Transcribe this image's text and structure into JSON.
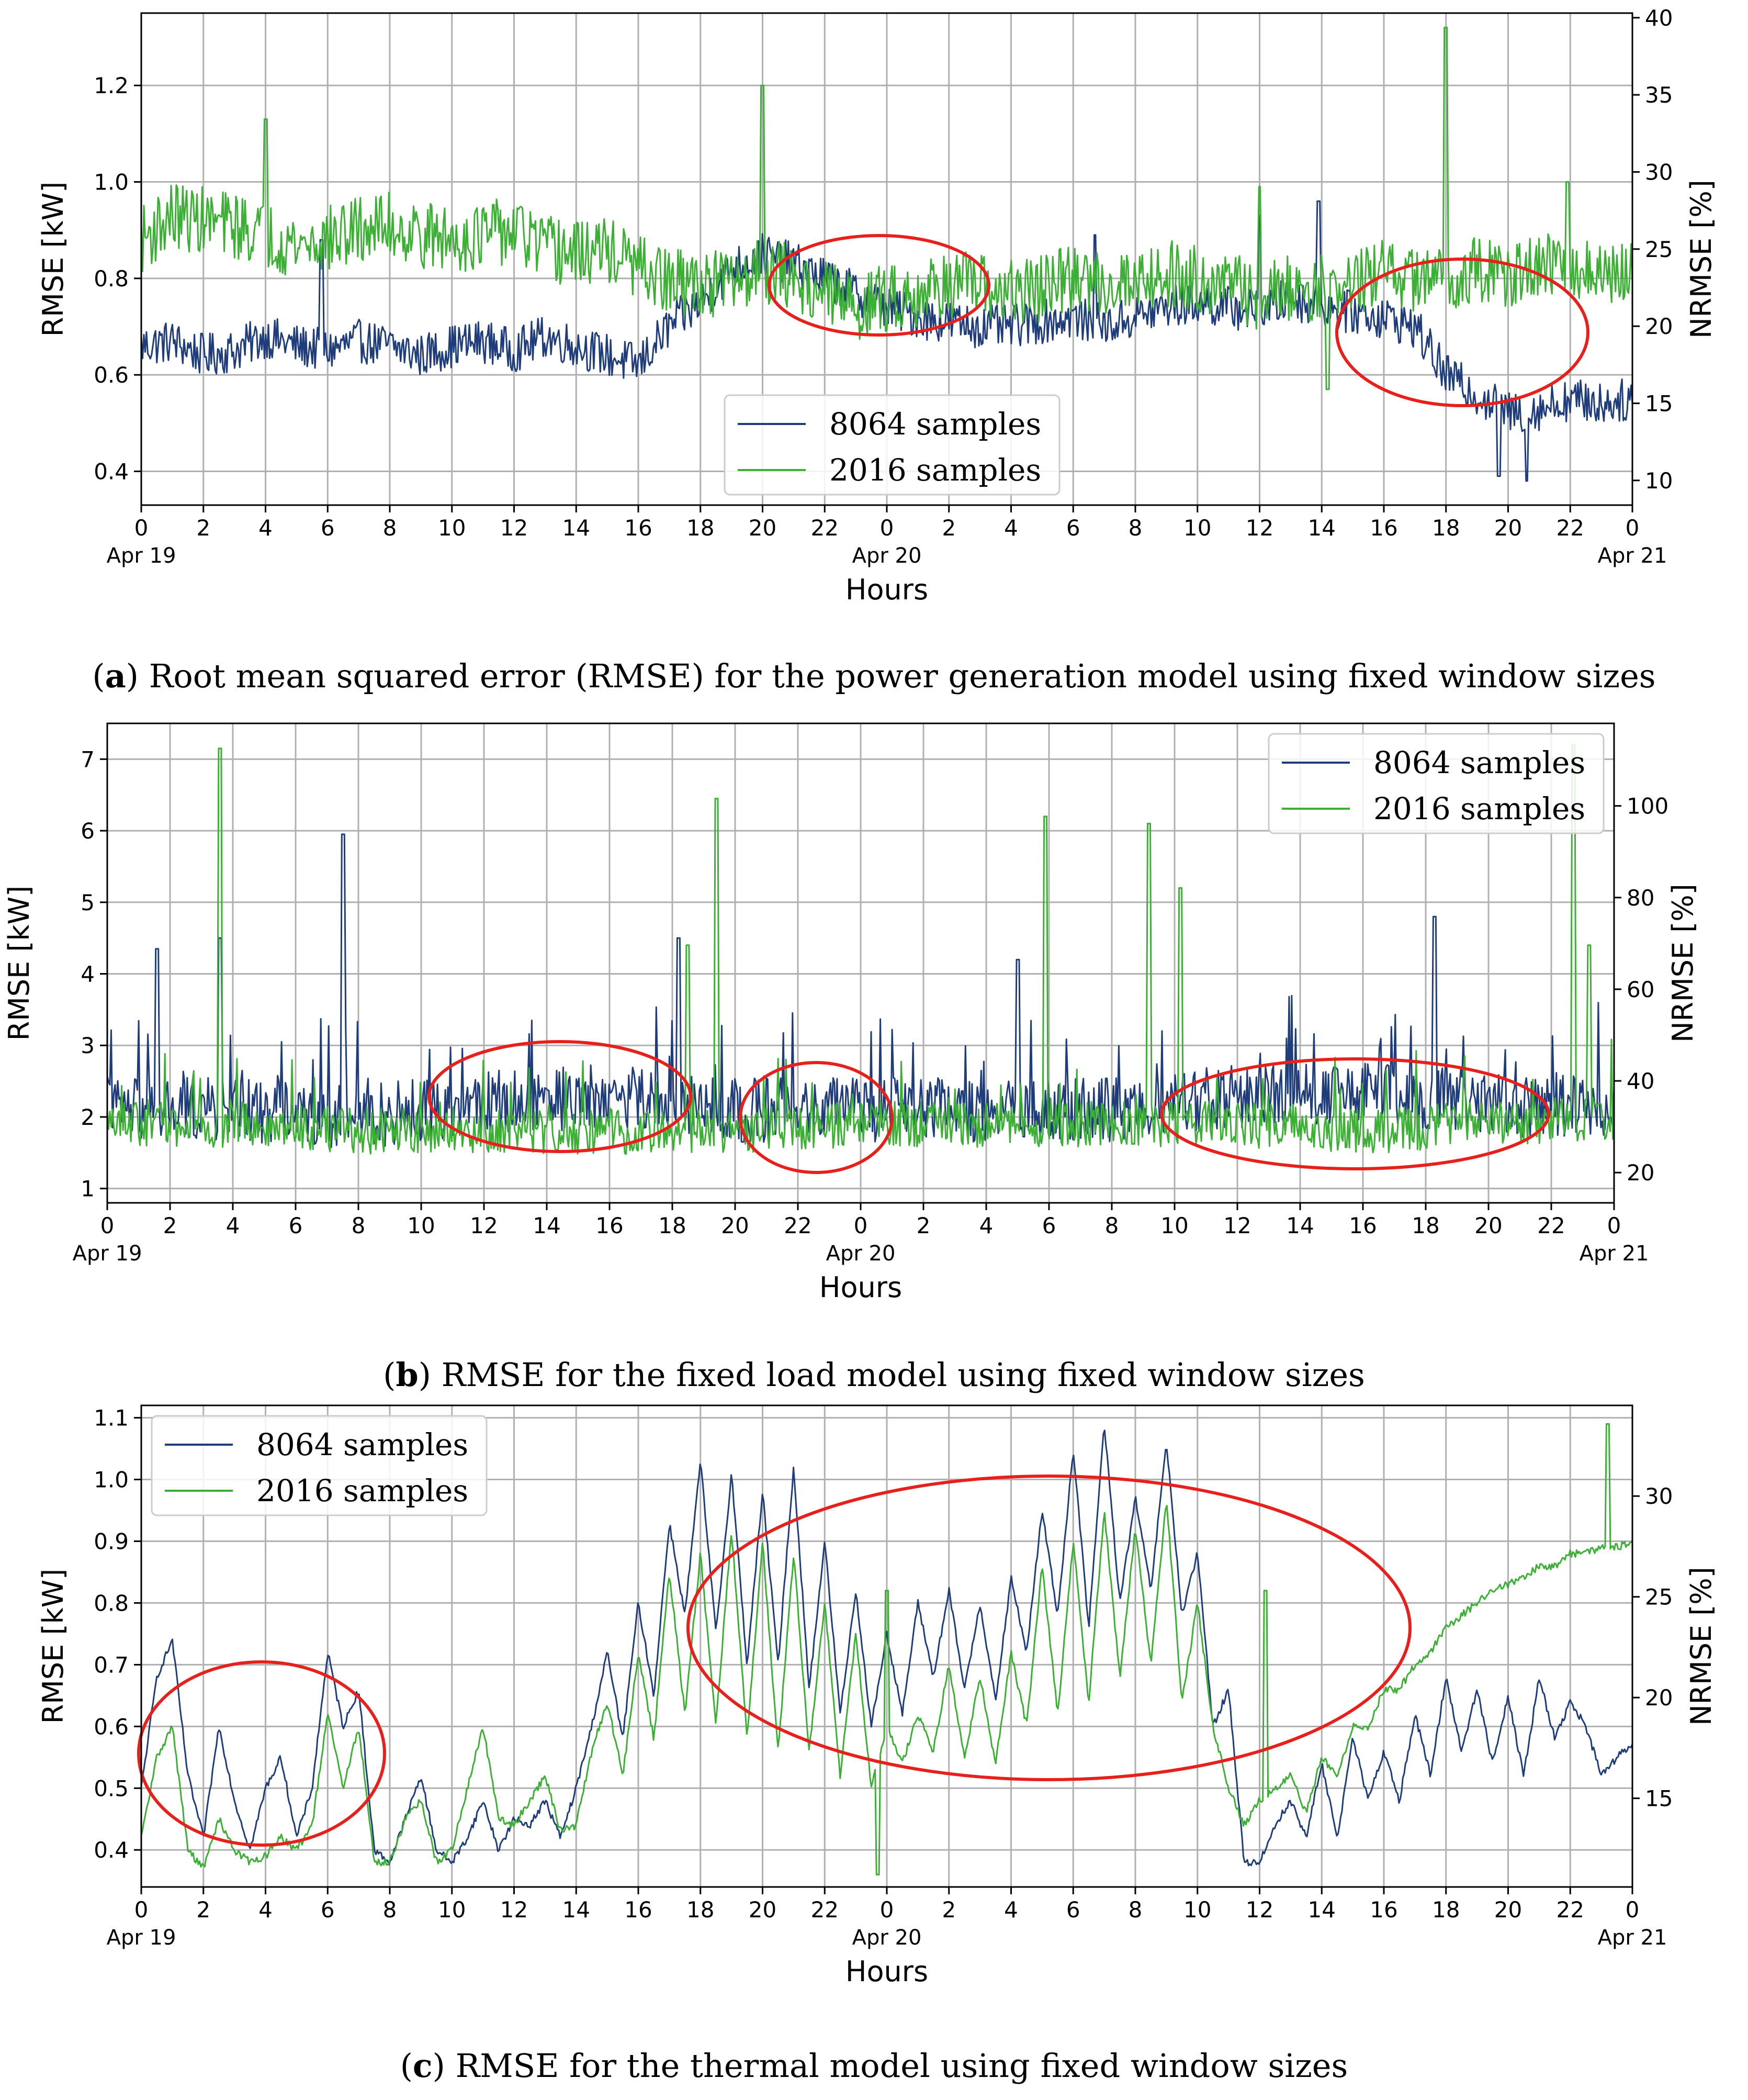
{
  "chart_data": [
    {
      "id": "a",
      "type": "line",
      "caption_letter": "a",
      "caption_text": "Root mean squared error (RMSE) for the power generation model using fixed window sizes",
      "xlabel": "Hours",
      "ylabel": "RMSE [kW]",
      "ylabel_right": "NRMSE [%]",
      "x_ticks": [
        "0",
        "2",
        "4",
        "6",
        "8",
        "10",
        "12",
        "14",
        "16",
        "18",
        "20",
        "22",
        "0",
        "2",
        "4",
        "6",
        "8",
        "10",
        "12",
        "14",
        "16",
        "18",
        "20",
        "22",
        "0"
      ],
      "date_labels": [
        {
          "index": 0,
          "label": "Apr 19"
        },
        {
          "index": 12,
          "label": "Apr 20"
        },
        {
          "index": 24,
          "label": "Apr 21"
        }
      ],
      "xlim": [
        0,
        48
      ],
      "ylim": [
        0.33,
        1.35
      ],
      "y_ticks": [
        0.4,
        0.6,
        0.8,
        1.0,
        1.2
      ],
      "y_tick_labels": [
        "0.4",
        "0.6",
        "0.8",
        "1.0",
        "1.2"
      ],
      "ylim_right": [
        8.4,
        40.3
      ],
      "y_ticks_right": [
        10,
        15,
        20,
        25,
        30,
        35,
        40
      ],
      "legend": {
        "position": "bottom-center",
        "entries": [
          "8064 samples",
          "2016 samples"
        ]
      },
      "series": [
        {
          "name": "8064 samples",
          "color": "#1f3d7a",
          "hours": [
            0,
            1,
            2,
            3,
            4,
            5,
            6,
            7,
            8,
            9,
            10,
            11,
            12,
            13,
            14,
            15,
            16,
            17,
            18,
            19,
            20,
            21,
            22,
            23,
            24,
            25,
            26,
            27,
            28,
            29,
            30,
            31,
            32,
            33,
            34,
            35,
            36,
            37,
            38,
            39,
            40,
            41,
            42,
            43,
            44,
            45,
            46,
            47,
            48
          ],
          "values": [
            0.66,
            0.67,
            0.64,
            0.65,
            0.68,
            0.66,
            0.65,
            0.67,
            0.66,
            0.64,
            0.66,
            0.67,
            0.65,
            0.68,
            0.66,
            0.64,
            0.62,
            0.7,
            0.75,
            0.82,
            0.85,
            0.83,
            0.8,
            0.77,
            0.74,
            0.72,
            0.71,
            0.7,
            0.7,
            0.71,
            0.72,
            0.7,
            0.72,
            0.74,
            0.75,
            0.74,
            0.73,
            0.76,
            0.74,
            0.73,
            0.72,
            0.7,
            0.6,
            0.56,
            0.52,
            0.53,
            0.55,
            0.54,
            0.55
          ],
          "noise": 0.045,
          "peaks": [
            [
              5.8,
              0.88
            ],
            [
              30.7,
              0.89
            ],
            [
              36.0,
              0.93
            ],
            [
              37.9,
              0.96
            ],
            [
              43.7,
              0.39
            ],
            [
              44.6,
              0.38
            ]
          ]
        },
        {
          "name": "2016 samples",
          "color": "#3cb034",
          "hours": [
            0,
            1,
            2,
            3,
            4,
            5,
            6,
            7,
            8,
            9,
            10,
            11,
            12,
            13,
            14,
            15,
            16,
            17,
            18,
            19,
            20,
            21,
            22,
            23,
            24,
            25,
            26,
            27,
            28,
            29,
            30,
            31,
            32,
            33,
            34,
            35,
            36,
            37,
            38,
            39,
            40,
            41,
            42,
            43,
            44,
            45,
            46,
            47,
            48
          ],
          "values": [
            0.88,
            0.93,
            0.92,
            0.91,
            0.89,
            0.87,
            0.88,
            0.9,
            0.91,
            0.89,
            0.88,
            0.89,
            0.9,
            0.86,
            0.85,
            0.86,
            0.82,
            0.79,
            0.79,
            0.79,
            0.82,
            0.8,
            0.77,
            0.74,
            0.76,
            0.77,
            0.79,
            0.78,
            0.77,
            0.78,
            0.8,
            0.79,
            0.8,
            0.81,
            0.8,
            0.79,
            0.76,
            0.78,
            0.78,
            0.79,
            0.81,
            0.8,
            0.8,
            0.82,
            0.8,
            0.82,
            0.83,
            0.8,
            0.81
          ],
          "noise": 0.07,
          "peaks": [
            [
              4.0,
              1.13
            ],
            [
              20.0,
              1.2
            ],
            [
              36.0,
              0.99
            ],
            [
              42.0,
              1.32
            ],
            [
              38.2,
              0.57
            ],
            [
              45.9,
              1.0
            ]
          ]
        }
      ]
    },
    {
      "id": "b",
      "type": "line",
      "caption_letter": "b",
      "caption_text": "RMSE for the fixed load model using fixed window sizes",
      "xlabel": "Hours",
      "ylabel": "RMSE [kW]",
      "ylabel_right": "NRMSE [%]",
      "x_ticks": [
        "0",
        "2",
        "4",
        "6",
        "8",
        "10",
        "12",
        "14",
        "16",
        "18",
        "20",
        "22",
        "0",
        "2",
        "4",
        "6",
        "8",
        "10",
        "12",
        "14",
        "16",
        "18",
        "20",
        "22",
        "0"
      ],
      "date_labels": [
        {
          "index": 0,
          "label": "Apr 19"
        },
        {
          "index": 12,
          "label": "Apr 20"
        },
        {
          "index": 24,
          "label": "Apr 21"
        }
      ],
      "xlim": [
        0,
        48
      ],
      "ylim": [
        0.8,
        7.5
      ],
      "y_ticks": [
        1,
        2,
        3,
        4,
        5,
        6,
        7
      ],
      "y_tick_labels": [
        "1",
        "2",
        "3",
        "4",
        "5",
        "6",
        "7"
      ],
      "ylim_right": [
        13.4,
        118.0
      ],
      "y_ticks_right": [
        20,
        40,
        60,
        80,
        100
      ],
      "legend": {
        "position": "top-right",
        "entries": [
          "8064 samples",
          "2016 samples"
        ]
      },
      "series": [
        {
          "name": "8064 samples",
          "color": "#1f3d7a",
          "hours": [
            0,
            4,
            8,
            12,
            16,
            20,
            24,
            28,
            32,
            36,
            40,
            44,
            48
          ],
          "values": [
            2.1,
            2.1,
            2.0,
            2.2,
            2.3,
            2.1,
            2.1,
            2.1,
            2.1,
            2.3,
            2.3,
            2.2,
            2.1
          ],
          "noise": 0.45,
          "peaks": [
            [
              1.6,
              4.35
            ],
            [
              3.6,
              4.5
            ],
            [
              7.5,
              5.95
            ],
            [
              18.2,
              4.5
            ],
            [
              42.3,
              4.8
            ],
            [
              29.0,
              4.2
            ]
          ]
        },
        {
          "name": "2016 samples",
          "color": "#3cb034",
          "hours": [
            0,
            4,
            8,
            12,
            16,
            20,
            24,
            28,
            32,
            36,
            40,
            44,
            48
          ],
          "values": [
            1.9,
            1.9,
            1.8,
            1.8,
            1.8,
            1.8,
            1.9,
            1.9,
            1.9,
            1.9,
            1.8,
            1.9,
            2.0
          ],
          "noise": 0.32,
          "peaks": [
            [
              3.6,
              7.15
            ],
            [
              19.4,
              6.45
            ],
            [
              29.9,
              6.2
            ],
            [
              33.2,
              6.1
            ],
            [
              46.7,
              7.2
            ],
            [
              34.2,
              5.2
            ],
            [
              18.5,
              4.4
            ],
            [
              47.2,
              4.4
            ]
          ]
        }
      ]
    },
    {
      "id": "c",
      "type": "line",
      "caption_letter": "c",
      "caption_text": "RMSE for the thermal model using fixed window sizes",
      "xlabel": "Hours",
      "ylabel": "RMSE [kW]",
      "ylabel_right": "NRMSE [%]",
      "x_ticks": [
        "0",
        "2",
        "4",
        "6",
        "8",
        "10",
        "12",
        "14",
        "16",
        "18",
        "20",
        "22",
        "0",
        "2",
        "4",
        "6",
        "8",
        "10",
        "12",
        "14",
        "16",
        "18",
        "20",
        "22",
        "0"
      ],
      "date_labels": [
        {
          "index": 0,
          "label": "Apr 19"
        },
        {
          "index": 12,
          "label": "Apr 20"
        },
        {
          "index": 24,
          "label": "Apr 21"
        }
      ],
      "xlim": [
        0,
        48
      ],
      "ylim": [
        0.34,
        1.12
      ],
      "y_ticks": [
        0.4,
        0.5,
        0.6,
        0.7,
        0.8,
        0.9,
        1.0,
        1.1
      ],
      "y_tick_labels": [
        "0.4",
        "0.5",
        "0.6",
        "0.7",
        "0.8",
        "0.9",
        "1.0",
        "1.1"
      ],
      "ylim_right": [
        10.6,
        34.5
      ],
      "y_ticks_right": [
        15,
        20,
        25,
        30
      ],
      "legend": {
        "position": "top-left",
        "entries": [
          "8064 samples",
          "2016 samples"
        ]
      },
      "series": [
        {
          "name": "8064 samples",
          "color": "#1f3d7a",
          "hours": [
            0,
            0.5,
            1,
            1.5,
            2,
            2.5,
            3,
            3.5,
            4,
            4.5,
            5,
            5.5,
            6,
            6.5,
            7,
            7.5,
            8,
            8.5,
            9,
            9.5,
            10,
            10.5,
            11,
            11.5,
            12,
            12.5,
            13,
            13.5,
            14,
            14.5,
            15,
            15.5,
            16,
            16.5,
            17,
            17.5,
            18,
            18.5,
            19,
            19.5,
            20,
            20.5,
            21,
            21.5,
            22,
            22.5,
            23,
            23.5,
            24,
            24.5,
            25,
            25.5,
            26,
            26.5,
            27,
            27.5,
            28,
            28.5,
            29,
            29.5,
            30,
            30.5,
            31,
            31.5,
            32,
            32.5,
            33,
            33.5,
            34,
            34.5,
            35,
            35.5,
            36,
            36.5,
            37,
            37.5,
            38,
            38.5,
            39,
            39.5,
            40,
            40.5,
            41,
            41.5,
            42,
            42.5,
            43,
            43.5,
            44,
            44.5,
            45,
            45.5,
            46,
            46.5,
            47,
            47.5,
            48
          ],
          "values": [
            0.5,
            0.68,
            0.74,
            0.52,
            0.42,
            0.6,
            0.48,
            0.4,
            0.5,
            0.55,
            0.42,
            0.5,
            0.72,
            0.6,
            0.66,
            0.4,
            0.38,
            0.45,
            0.52,
            0.4,
            0.38,
            0.42,
            0.48,
            0.4,
            0.45,
            0.44,
            0.48,
            0.42,
            0.5,
            0.6,
            0.72,
            0.58,
            0.8,
            0.65,
            0.93,
            0.78,
            1.03,
            0.75,
            1.01,
            0.7,
            0.98,
            0.7,
            1.02,
            0.66,
            0.9,
            0.62,
            0.82,
            0.6,
            0.75,
            0.62,
            0.8,
            0.68,
            0.82,
            0.66,
            0.8,
            0.64,
            0.84,
            0.72,
            0.95,
            0.78,
            1.05,
            0.76,
            1.09,
            0.8,
            0.97,
            0.82,
            1.06,
            0.78,
            0.88,
            0.6,
            0.66,
            0.38,
            0.38,
            0.44,
            0.48,
            0.42,
            0.54,
            0.42,
            0.58,
            0.48,
            0.56,
            0.48,
            0.62,
            0.52,
            0.68,
            0.56,
            0.66,
            0.54,
            0.65,
            0.52,
            0.68,
            0.58,
            0.64,
            0.6,
            0.52,
            0.55,
            0.57
          ],
          "noise": 0.006,
          "peaks": []
        },
        {
          "name": "2016 samples",
          "color": "#3cb034",
          "hours": [
            0,
            0.5,
            1,
            1.5,
            2,
            2.5,
            3,
            3.5,
            4,
            4.5,
            5,
            5.5,
            6,
            6.5,
            7,
            7.5,
            8,
            8.5,
            9,
            9.5,
            10,
            10.5,
            11,
            11.5,
            12,
            12.5,
            13,
            13.5,
            14,
            14.5,
            15,
            15.5,
            16,
            16.5,
            17,
            17.5,
            18,
            18.5,
            19,
            19.5,
            20,
            20.5,
            21,
            21.5,
            22,
            22.5,
            23,
            23.5,
            24,
            24.5,
            25,
            25.5,
            26,
            26.5,
            27,
            27.5,
            28,
            28.5,
            29,
            29.5,
            30,
            30.5,
            31,
            31.5,
            32,
            32.5,
            33,
            33.5,
            34,
            34.5,
            35,
            35.5,
            36,
            36.5,
            37,
            37.5,
            38,
            38.5,
            39,
            39.5,
            40,
            40.5,
            41,
            41.5,
            42,
            42.5,
            43,
            43.5,
            44,
            44.5,
            45,
            45.5,
            46,
            46.5,
            47,
            47.5,
            48
          ],
          "values": [
            0.42,
            0.55,
            0.6,
            0.4,
            0.37,
            0.45,
            0.4,
            0.38,
            0.39,
            0.42,
            0.4,
            0.44,
            0.62,
            0.5,
            0.6,
            0.38,
            0.38,
            0.45,
            0.48,
            0.38,
            0.4,
            0.5,
            0.6,
            0.45,
            0.44,
            0.48,
            0.52,
            0.43,
            0.44,
            0.56,
            0.64,
            0.52,
            0.72,
            0.58,
            0.85,
            0.62,
            0.88,
            0.6,
            0.92,
            0.58,
            0.9,
            0.56,
            0.88,
            0.56,
            0.8,
            0.52,
            0.75,
            0.5,
            0.6,
            0.54,
            0.62,
            0.56,
            0.7,
            0.55,
            0.68,
            0.54,
            0.72,
            0.6,
            0.86,
            0.62,
            0.9,
            0.64,
            0.95,
            0.68,
            0.92,
            0.7,
            0.97,
            0.64,
            0.8,
            0.6,
            0.5,
            0.44,
            0.48,
            0.5,
            0.52,
            0.46,
            0.55,
            0.52,
            0.6,
            0.6,
            0.66,
            0.66,
            0.7,
            0.72,
            0.76,
            0.78,
            0.8,
            0.82,
            0.83,
            0.84,
            0.86,
            0.86,
            0.88,
            0.88,
            0.89,
            0.89,
            0.9
          ],
          "noise": 0.006,
          "peaks": [
            [
              47.2,
              1.09
            ],
            [
              24.0,
              0.82
            ],
            [
              36.2,
              0.82
            ],
            [
              23.7,
              0.36
            ]
          ]
        }
      ]
    }
  ]
}
